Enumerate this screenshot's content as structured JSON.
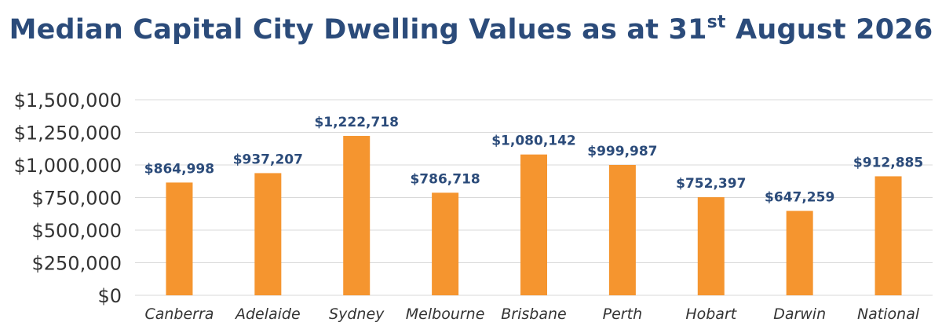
{
  "chart_data": {
    "type": "bar",
    "title_main": "Median Capital City Dwelling Values as at 31",
    "title_sup": "st",
    "title_end": " August 2026",
    "categories": [
      "Canberra",
      "Adelaide",
      "Sydney",
      "Melbourne",
      "Brisbane",
      "Perth",
      "Hobart",
      "Darwin",
      "National"
    ],
    "values": [
      864998,
      937207,
      1222718,
      786718,
      1080142,
      999987,
      752397,
      647259,
      912885
    ],
    "data_labels": [
      "$864,998",
      "$937,207",
      "$1,222,718",
      "$786,718",
      "$1,080,142",
      "$999,987",
      "$752,397",
      "$647,259",
      "$912,885"
    ],
    "ylim": [
      0,
      1500000
    ],
    "yticks": [
      0,
      250000,
      500000,
      750000,
      1000000,
      1250000,
      1500000
    ],
    "ytick_labels": [
      "$0",
      "$250,000",
      "$500,000",
      "$750,000",
      "$1,000,000",
      "$1,250,000",
      "$1,500,000"
    ],
    "bar_color": "#f5952f",
    "label_color": "#2b4b7a",
    "grid": true,
    "legend": "none"
  }
}
